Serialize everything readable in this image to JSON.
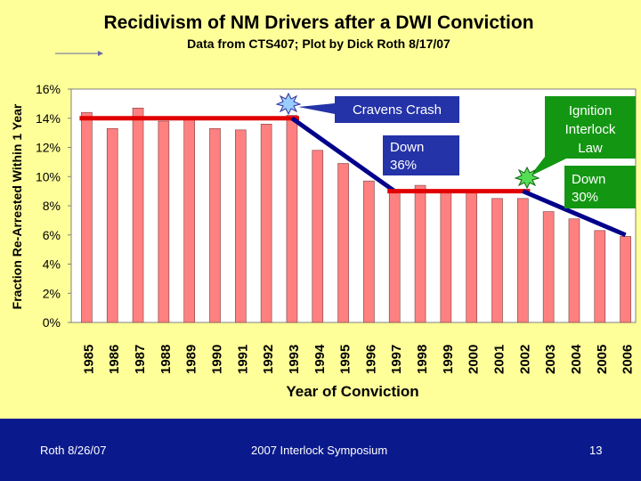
{
  "chart_data": {
    "type": "bar",
    "title": "Recidivism of NM Drivers after a DWI Conviction",
    "subtitle": "Data from CTS407; Plot by Dick Roth 8/17/07",
    "xlabel": "Year of Conviction",
    "ylabel": "Fraction Re-Arrested Within 1 Year",
    "ylim": [
      0,
      16
    ],
    "yticks": [
      "0%",
      "2%",
      "4%",
      "6%",
      "8%",
      "10%",
      "12%",
      "14%",
      "16%"
    ],
    "grid": false,
    "categories": [
      "1985",
      "1986",
      "1987",
      "1988",
      "1989",
      "1990",
      "1991",
      "1992",
      "1993",
      "1994",
      "1995",
      "1996",
      "1997",
      "1998",
      "1999",
      "2000",
      "2001",
      "2002",
      "2003",
      "2004",
      "2005",
      "2006"
    ],
    "values": [
      14.4,
      13.3,
      14.7,
      13.8,
      14.1,
      13.3,
      13.2,
      13.6,
      14.2,
      11.8,
      10.9,
      9.7,
      9.0,
      9.4,
      9.1,
      9.1,
      8.5,
      8.5,
      7.6,
      7.1,
      6.3,
      5.9
    ],
    "bar_color": "#ff8080",
    "trend_lines": [
      {
        "kind": "level",
        "color": "#e00000",
        "from": "1985",
        "to": "1993",
        "value": 14.0
      },
      {
        "kind": "decline",
        "color": "#00008b",
        "from": "1993",
        "to": "1997",
        "start_value": 14.0,
        "end_value": 9.0
      },
      {
        "kind": "level",
        "color": "#e00000",
        "from": "1997",
        "to": "2002",
        "value": 9.0
      },
      {
        "kind": "decline",
        "color": "#00008b",
        "from": "2002",
        "to": "2006",
        "start_value": 9.0,
        "end_value": 6.0
      }
    ],
    "annotations": [
      {
        "id": "cravens",
        "text": "Cravens Crash",
        "lines": [
          "Cravens Crash"
        ],
        "style": "blue",
        "year": "1993"
      },
      {
        "id": "down36",
        "text": "Down 36%",
        "lines": [
          "Down",
          "36%"
        ],
        "style": "blue"
      },
      {
        "id": "interlock",
        "text": "Ignition Interlock Law",
        "lines": [
          "Ignition",
          "Interlock",
          "Law"
        ],
        "style": "green",
        "year": "2002"
      },
      {
        "id": "down30",
        "text": "Down 30%",
        "lines": [
          "Down",
          "30%"
        ],
        "style": "green"
      }
    ]
  },
  "footer": {
    "left": "Roth 8/26/07",
    "center": "2007 Interlock Symposium",
    "right": "13",
    "background": "#0a1a8c"
  }
}
